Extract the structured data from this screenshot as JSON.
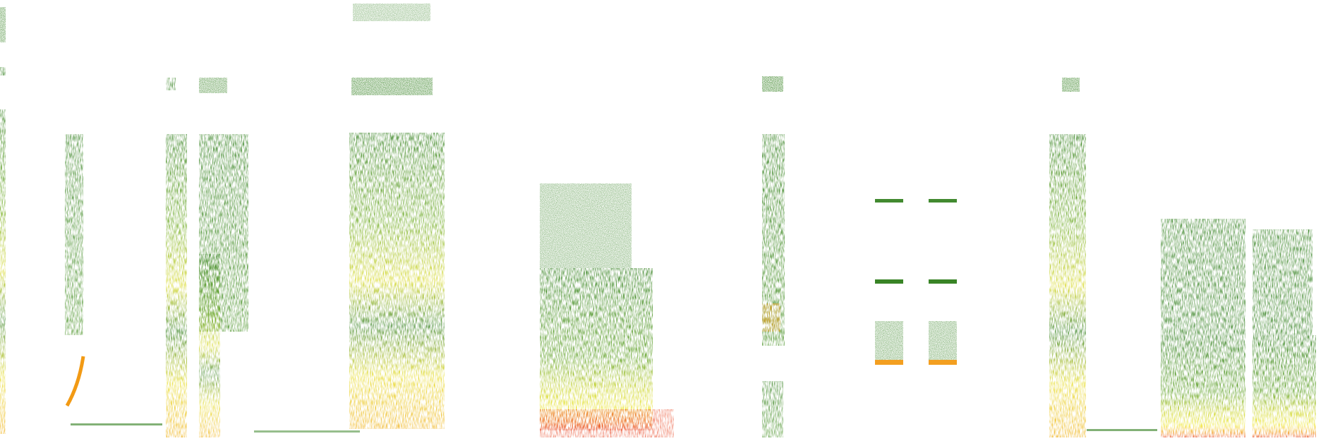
{
  "spectrogram": {
    "background_color": "#ffffff",
    "colormap": {
      "low": "#2e7d1a",
      "mid_low": "#5a9e1e",
      "mid": "#c8d21a",
      "mid_high": "#f0e62a",
      "high": "#f29a14",
      "peak": "#e8401c"
    },
    "segments": [
      {
        "id": "seg-a",
        "kind": "vertical-band",
        "intensity": 0.85
      },
      {
        "id": "seg-b",
        "kind": "narrow-sweep",
        "intensity": 0.6
      },
      {
        "id": "seg-c",
        "kind": "vertical-band",
        "intensity": 0.75
      },
      {
        "id": "seg-d",
        "kind": "feathered-band",
        "intensity": 0.55
      },
      {
        "id": "seg-e",
        "kind": "striated-block",
        "intensity": 0.8
      },
      {
        "id": "seg-f",
        "kind": "layered-block",
        "intensity": 0.9
      },
      {
        "id": "seg-g",
        "kind": "pulse-column",
        "intensity": 0.7
      },
      {
        "id": "seg-h",
        "kind": "tonal-pair",
        "intensity": 0.75
      },
      {
        "id": "seg-i",
        "kind": "tonal-pair",
        "intensity": 0.75
      },
      {
        "id": "seg-j",
        "kind": "vertical-band",
        "intensity": 0.85
      },
      {
        "id": "seg-k",
        "kind": "dense-block",
        "intensity": 0.9
      },
      {
        "id": "seg-l",
        "kind": "dense-block",
        "intensity": 0.9
      }
    ]
  }
}
